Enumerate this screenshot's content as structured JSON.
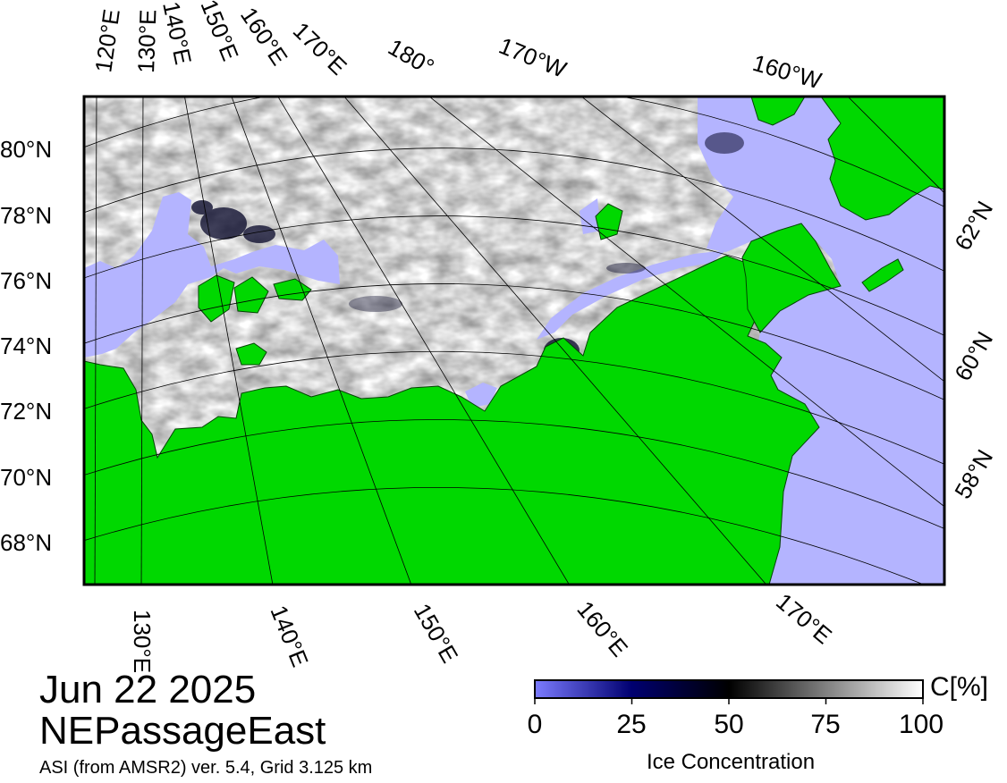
{
  "title": {
    "date": "Jun 22 2025",
    "region": "NEPassageEast",
    "source": "ASI (from AMSR2) ver. 5.4,  Grid 3.125 km"
  },
  "colors": {
    "land": "#00d800",
    "open_water": "#b4b4ff",
    "ice_full": "#ffffff",
    "ice_zero": "#000050",
    "graticule": "#000000",
    "frame": "#000000"
  },
  "graticule": {
    "lat_labels_left": [
      "80°N",
      "78°N",
      "76°N",
      "74°N",
      "72°N",
      "70°N",
      "68°N"
    ],
    "lat_labels_right": [
      "62°N",
      "60°N",
      "58°N"
    ],
    "lon_labels_top": [
      "120°E",
      "130°E",
      "140°E",
      "150°E",
      "160°E",
      "170°E",
      "180°",
      "170°W",
      "160°W"
    ],
    "lon_labels_bottom": [
      "130°E",
      "140°E",
      "150°E",
      "160°E",
      "170°E"
    ]
  },
  "legend": {
    "title": "Ice Concentration",
    "unit": "C[%]",
    "ticks": [
      "0",
      "25",
      "50",
      "75",
      "100"
    ],
    "colormap": [
      {
        "value": 0,
        "color": "#7b7bff"
      },
      {
        "value": 25,
        "color": "#000070"
      },
      {
        "value": 50,
        "color": "#000000"
      },
      {
        "value": 75,
        "color": "#808080"
      },
      {
        "value": 100,
        "color": "#ffffff"
      }
    ]
  }
}
